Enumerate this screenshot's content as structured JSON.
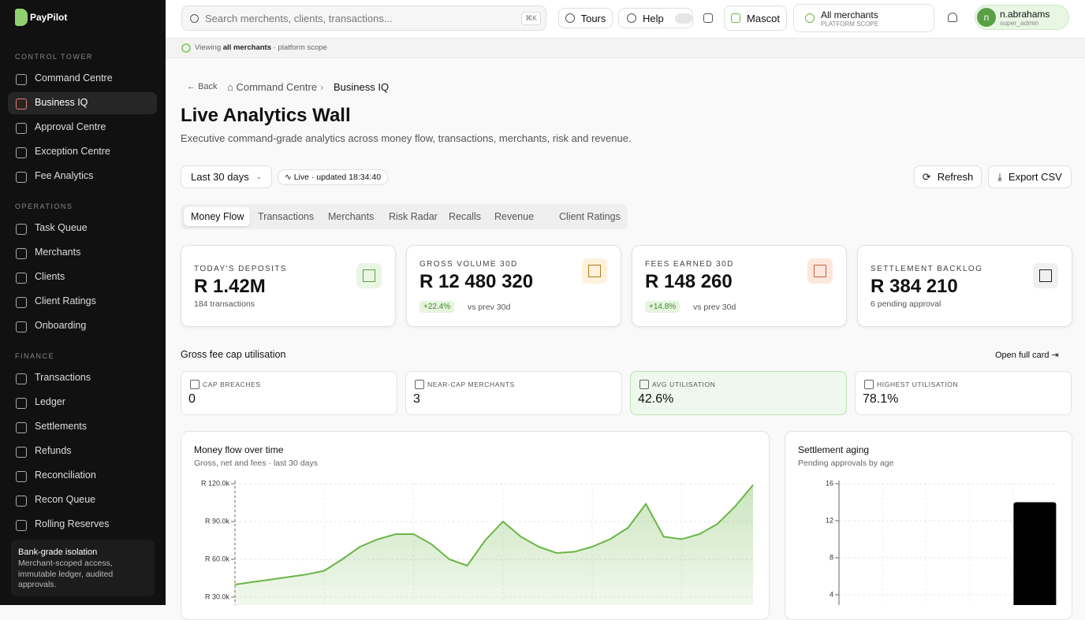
{
  "sidebar": {
    "logo": "PayPilot",
    "sections": [
      {
        "title": "CONTROL TOWER",
        "items": [
          "Command Centre",
          "Business IQ",
          "Approval Centre",
          "Exception Centre",
          "Fee Analytics"
        ]
      },
      {
        "title": "OPERATIONS",
        "items": [
          "Task Queue",
          "Merchants",
          "Clients",
          "Client Ratings",
          "Onboarding"
        ]
      },
      {
        "title": "FINANCE",
        "items": [
          "Transactions",
          "Ledger",
          "Settlements",
          "Refunds",
          "Reconciliation",
          "Recon Queue",
          "Rolling Reserves"
        ]
      }
    ],
    "active": "Business IQ",
    "footer": {
      "title": "Bank-grade isolation",
      "text": "Merchant-scoped access, immutable ledger, audited approvals."
    }
  },
  "topbar": {
    "search": "Search merchents, clients, transactions...",
    "shortcut": "⌘K",
    "tours": "Tours",
    "help": "Help",
    "mascot": "Mascot",
    "scope": "All merchants",
    "scope_sub": "PLATFORM SCOPE",
    "user": "n.abrahams",
    "role": "super_admin",
    "avatar": "n"
  },
  "banner": {
    "prefix": "Viewing",
    "bold": "all merchants",
    "suffix": "· platform scope"
  },
  "breadcrumb": {
    "back": "Back",
    "parent": "Command Centre",
    "current": "Business IQ"
  },
  "header": {
    "title": "Live Analytics Wall",
    "subtitle": "Executive command-grade analytics across money flow, transactions, merchants, risk and revenue."
  },
  "controls": {
    "range": "Last 30 days",
    "live": "Live · updated 18:34:40",
    "refresh": "Refresh",
    "export": "Export CSV"
  },
  "tabs": [
    "Money Flow",
    "Transactions",
    "Merchants",
    "Risk Radar",
    "Recalls",
    "Revenue",
    "Client Ratings"
  ],
  "kpis": [
    {
      "label": "TODAY'S DEPOSITS",
      "value": "R 1.42M",
      "note": "184 transactions"
    },
    {
      "label": "GROSS VOLUME 30D",
      "value": "R 12 480 320",
      "delta": "+22.4%",
      "note": "vs prev 30d"
    },
    {
      "label": "FEES EARNED 30D",
      "value": "R 148 260",
      "delta": "+14.8%",
      "note": "vs prev 30d"
    },
    {
      "label": "SETTLEMENT BACKLOG",
      "value": "R 384 210",
      "note": "6 pending approval"
    }
  ],
  "cap": {
    "title": "Gross fee cap utilisation",
    "link": "Open full card",
    "cards": [
      {
        "label": "CAP BREACHES",
        "value": "0"
      },
      {
        "label": "NEAR-CAP MERCHANTS",
        "value": "3"
      },
      {
        "label": "AVG UTILISATION",
        "value": "42.6%"
      },
      {
        "label": "HIGHEST UTILISATION",
        "value": "78.1%"
      }
    ]
  },
  "chart_data": [
    {
      "type": "line",
      "title": "Money flow over time",
      "subtitle": "Gross, net and fees · last 30 days",
      "categories": [
        null,
        null,
        null,
        null,
        null,
        null,
        null,
        null,
        null,
        null,
        null,
        null,
        null,
        null,
        null,
        null,
        null,
        null,
        null,
        null,
        null,
        null,
        null,
        null,
        null,
        null,
        null,
        null,
        null,
        null
      ],
      "series": [
        {
          "name": null,
          "color": "#6ab547",
          "values": [
            40000,
            42000,
            44000,
            46000,
            48000,
            51000,
            60000,
            70000,
            76000,
            80000,
            80000,
            72000,
            60000,
            55000,
            75000,
            90000,
            78000,
            70000,
            65000,
            66000,
            70000,
            76000,
            85000,
            104000,
            78000,
            76000,
            80000,
            88000,
            102000,
            119000
          ]
        }
      ],
      "ylim": [
        0,
        120000
      ],
      "yticks": [
        {
          "value": 30000,
          "label": "R 30.0k"
        },
        {
          "value": 60000,
          "label": "R 60.0k"
        },
        {
          "value": 90000,
          "label": "R 90.0k"
        },
        {
          "value": 120000,
          "label": "R 120.0k"
        }
      ],
      "grid": true
    },
    {
      "type": "bar",
      "title": "Settlement aging",
      "subtitle": "Pending approvals by age",
      "categories": [
        null,
        null,
        null,
        null,
        null
      ],
      "values": [
        0,
        0,
        0,
        0,
        14
      ],
      "color": "#000000",
      "ylim": [
        0,
        16
      ],
      "yticks": [
        4,
        8,
        12,
        16
      ],
      "grid": true
    }
  ]
}
